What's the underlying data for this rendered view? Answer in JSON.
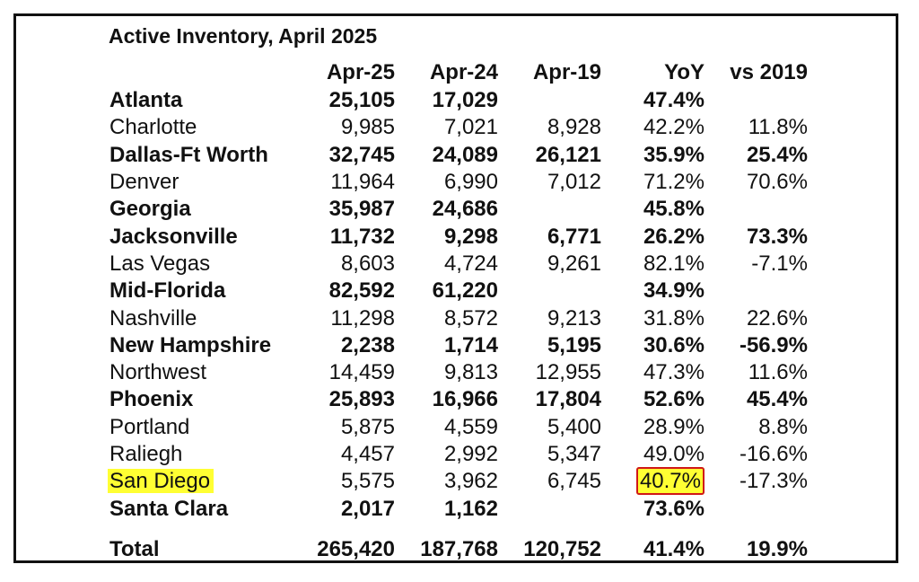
{
  "title": "Active Inventory, April 2025",
  "columns": [
    "",
    "Apr-25",
    "Apr-24",
    "Apr-19",
    "YoY",
    "vs 2019"
  ],
  "rows": [
    {
      "name": "Atlanta",
      "bold": true,
      "values": [
        "25,105",
        "17,029",
        "",
        "47.4%",
        ""
      ]
    },
    {
      "name": "Charlotte",
      "bold": false,
      "values": [
        "9,985",
        "7,021",
        "8,928",
        "42.2%",
        "11.8%"
      ]
    },
    {
      "name": "Dallas-Ft Worth",
      "bold": true,
      "values": [
        "32,745",
        "24,089",
        "26,121",
        "35.9%",
        "25.4%"
      ]
    },
    {
      "name": "Denver",
      "bold": false,
      "values": [
        "11,964",
        "6,990",
        "7,012",
        "71.2%",
        "70.6%"
      ]
    },
    {
      "name": "Georgia",
      "bold": true,
      "values": [
        "35,987",
        "24,686",
        "",
        "45.8%",
        ""
      ]
    },
    {
      "name": "Jacksonville",
      "bold": true,
      "values": [
        "11,732",
        "9,298",
        "6,771",
        "26.2%",
        "73.3%"
      ]
    },
    {
      "name": "Las Vegas",
      "bold": false,
      "values": [
        "8,603",
        "4,724",
        "9,261",
        "82.1%",
        "-7.1%"
      ]
    },
    {
      "name": "Mid-Florida",
      "bold": true,
      "values": [
        "82,592",
        "61,220",
        "",
        "34.9%",
        ""
      ]
    },
    {
      "name": "Nashville",
      "bold": false,
      "values": [
        "11,298",
        "8,572",
        "9,213",
        "31.8%",
        "22.6%"
      ]
    },
    {
      "name": "New Hampshire",
      "bold": true,
      "values": [
        "2,238",
        "1,714",
        "5,195",
        "30.6%",
        "-56.9%"
      ]
    },
    {
      "name": "Northwest",
      "bold": false,
      "values": [
        "14,459",
        "9,813",
        "12,955",
        "47.3%",
        "11.6%"
      ]
    },
    {
      "name": "Phoenix",
      "bold": true,
      "values": [
        "25,893",
        "16,966",
        "17,804",
        "52.6%",
        "45.4%"
      ]
    },
    {
      "name": "Portland",
      "bold": false,
      "values": [
        "5,875",
        "4,559",
        "5,400",
        "28.9%",
        "8.8%"
      ]
    },
    {
      "name": "Raliegh",
      "bold": false,
      "values": [
        "4,457",
        "2,992",
        "5,347",
        "49.0%",
        "-16.6%"
      ]
    },
    {
      "name": "San Diego",
      "bold": false,
      "highlight": true,
      "values": [
        "5,575",
        "3,962",
        "6,745",
        "40.7%",
        "-17.3%"
      ]
    },
    {
      "name": "Santa Clara",
      "bold": true,
      "values": [
        "2,017",
        "1,162",
        "",
        "73.6%",
        ""
      ]
    }
  ],
  "total": {
    "name": "Total",
    "values": [
      "265,420",
      "187,768",
      "120,752",
      "41.4%",
      "19.9%"
    ]
  },
  "colors": {
    "highlight": "#ffff33",
    "highlight_border": "#d01818"
  }
}
